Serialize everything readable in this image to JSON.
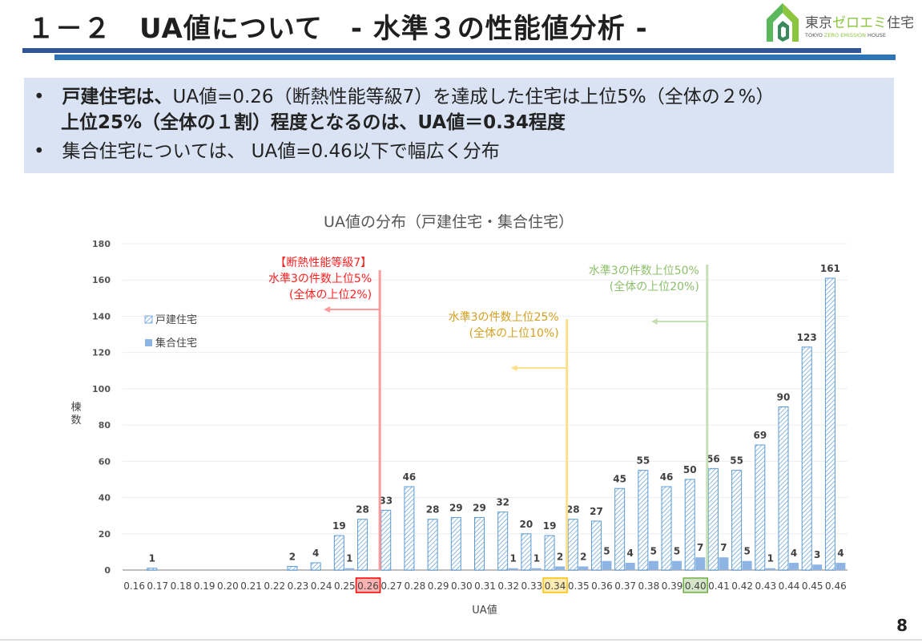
{
  "header": {
    "title": "１－２　UA値について　- 水準３の性能値分析 -"
  },
  "logo": {
    "text_jp": "東京ゼロエミ住宅",
    "text_en": "TOKYO ZERO EMISSION HOUSE",
    "colors": {
      "dark": "#3a8a5c",
      "mid": "#5cb85c",
      "light": "#8cc63f"
    }
  },
  "summary": {
    "bullet1_bold": "戸建住宅は、",
    "bullet1_rest": "UA値=0.26（断熱性能等級7）を達成した住宅は上位5%（全体の２%）",
    "bullet1_line2": "上位25%（全体の１割）程度となるのは、UA値＝0.34程度",
    "bullet2": "集合住宅については、 UA値=0.46以下で幅広く分布",
    "bullet_mark": "•"
  },
  "chart_data": {
    "type": "bar",
    "title": "UA値の分布（戸建住宅・集合住宅）",
    "xlabel": "UA値",
    "ylabel": "棟数",
    "ylim": [
      0,
      180
    ],
    "yticks": [
      0,
      20,
      40,
      60,
      80,
      100,
      120,
      140,
      160,
      180
    ],
    "grid": true,
    "legend_placement": "top-left",
    "categories": [
      "0.16",
      "0.17",
      "0.18",
      "0.19",
      "0.20",
      "0.21",
      "0.22",
      "0.23",
      "0.24",
      "0.25",
      "0.26",
      "0.27",
      "0.28",
      "0.29",
      "0.30",
      "0.31",
      "0.32",
      "0.33",
      "0.34",
      "0.35",
      "0.36",
      "0.37",
      "0.38",
      "0.39",
      "0.40",
      "0.41",
      "0.42",
      "0.43",
      "0.44",
      "0.45",
      "0.46"
    ],
    "series": [
      {
        "name": "戸建住宅",
        "style": "hatched",
        "color": "#5b9bd5",
        "values": [
          0,
          1,
          0,
          0,
          0,
          0,
          0,
          2,
          4,
          19,
          28,
          33,
          46,
          28,
          29,
          29,
          32,
          20,
          19,
          28,
          27,
          45,
          55,
          46,
          50,
          56,
          55,
          69,
          90,
          123,
          161
        ]
      },
      {
        "name": "集合住宅",
        "style": "solid",
        "color": "#8db4e2",
        "values": [
          0,
          0,
          0,
          0,
          0,
          0,
          0,
          0,
          0,
          1,
          0,
          0,
          0,
          0,
          0,
          0,
          1,
          1,
          2,
          2,
          5,
          4,
          5,
          5,
          7,
          7,
          5,
          1,
          4,
          3,
          4
        ]
      }
    ],
    "highlighted_categories": [
      {
        "category": "0.26",
        "color": "#ff0000"
      },
      {
        "category": "0.34",
        "color": "#ffc000"
      },
      {
        "category": "0.40",
        "color": "#70ad47"
      }
    ],
    "annotations": [
      {
        "at_ua": 0.26,
        "color": "#ff2020",
        "line_color": "#ff9a9a",
        "lines": [
          "【断熱性能等級7】",
          "水準3の件数上位5%",
          "(全体の上位2%)"
        ]
      },
      {
        "at_ua": 0.34,
        "color": "#d4a020",
        "line_color": "#ffe08a",
        "lines": [
          "水準3の件数上位25%",
          "(全体の上位10%)"
        ]
      },
      {
        "at_ua": 0.4,
        "color": "#8cbf6a",
        "line_color": "#c5e0b4",
        "lines": [
          "水準3の件数上位50%",
          "(全体の上位20%)"
        ]
      }
    ]
  },
  "page": {
    "number": "8"
  }
}
